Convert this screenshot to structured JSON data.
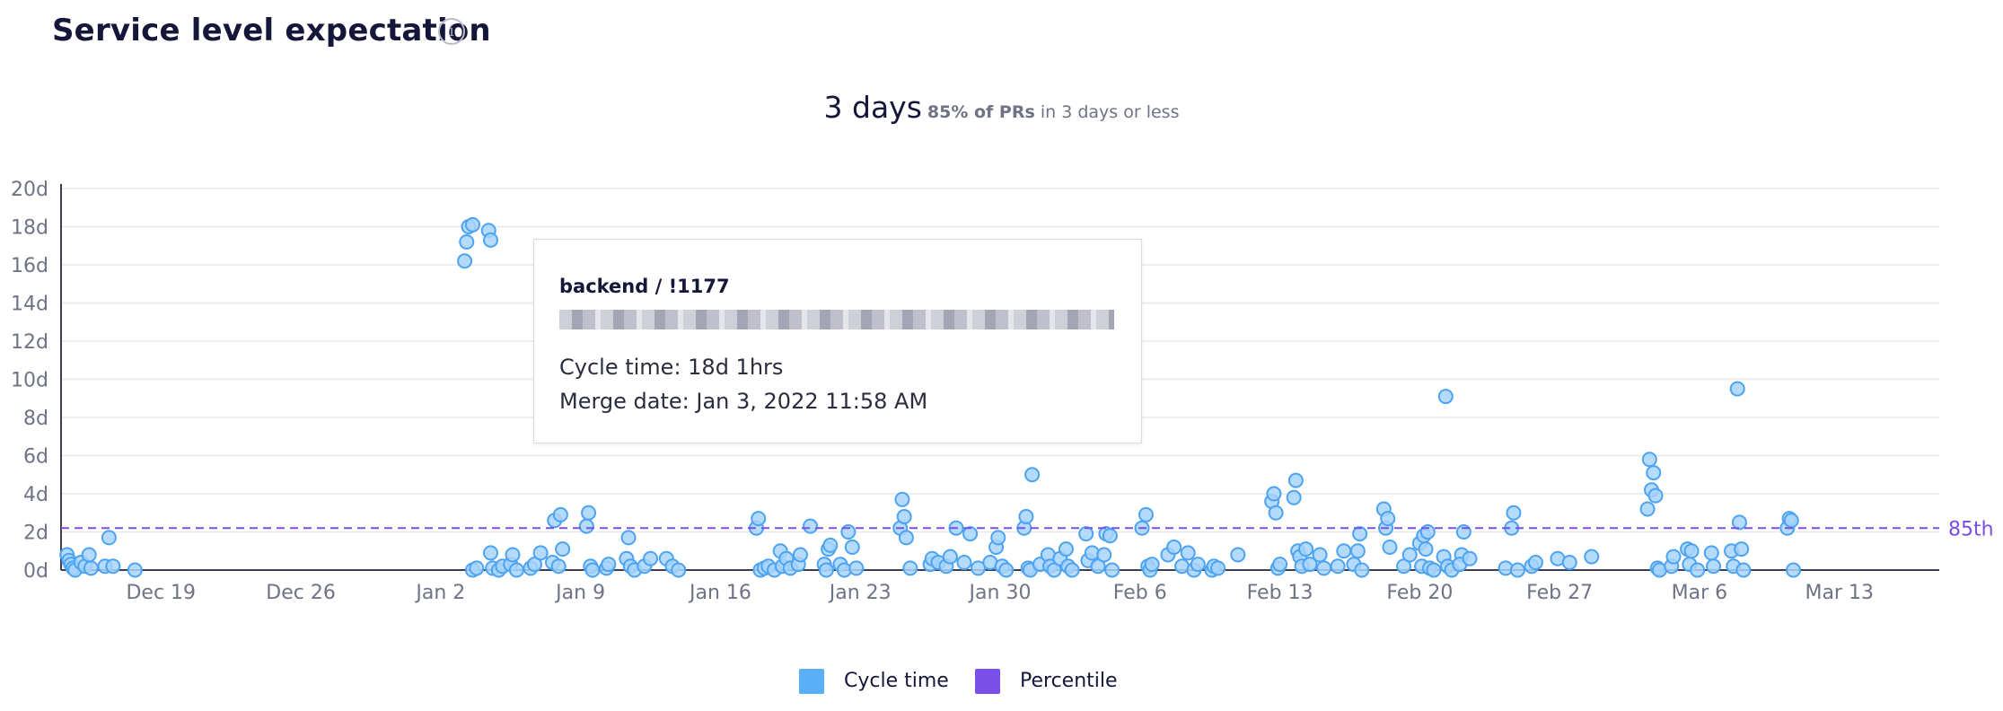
{
  "header": {
    "title": "Service level expectation",
    "info_icon": "info-icon"
  },
  "summary": {
    "value": "3 days",
    "note_strong": "85% of PRs",
    "note_rest": " in 3 days or less"
  },
  "tooltip": {
    "title": "backend / !1177",
    "cycle_time": "Cycle time: 18d 1hrs",
    "merge_date": "Merge date: Jan 3, 2022 11:58 AM"
  },
  "legend": [
    {
      "label": "Cycle time",
      "color": "#5aaef5"
    },
    {
      "label": "Percentile",
      "color": "#7a4ee8"
    }
  ],
  "colors": {
    "point_fill": "#a7d3fb",
    "point_stroke": "#4da3f0",
    "percentile": "#7a4ee8",
    "grid": "#e6e8ee",
    "axis": "#6e7385"
  },
  "chart_data": {
    "type": "scatter",
    "title": "",
    "xlabel": "",
    "ylabel": "",
    "ylim": [
      0,
      20
    ],
    "y_ticks": [
      "0d",
      "2d",
      "4d",
      "6d",
      "8d",
      "10d",
      "12d",
      "14d",
      "16d",
      "18d",
      "20d"
    ],
    "x_ticks": [
      "Dec 19",
      "Dec 26",
      "Jan 2",
      "Jan 9",
      "Jan 16",
      "Jan 23",
      "Jan 30",
      "Feb 6",
      "Feb 13",
      "Feb 20",
      "Feb 27",
      "Mar 6",
      "Mar 13"
    ],
    "x_tick_days": [
      0,
      7,
      14,
      21,
      28,
      35,
      42,
      49,
      56,
      63,
      70,
      77,
      84
    ],
    "xlim": [
      -5,
      89
    ],
    "percentile": {
      "label": "85th",
      "value": 2.2
    },
    "series": [
      {
        "name": "Cycle time",
        "points": [
          [
            -4.7,
            0.8
          ],
          [
            -4.6,
            0.5
          ],
          [
            -4.5,
            0.3
          ],
          [
            -4.4,
            0.1
          ],
          [
            -4.3,
            0.0
          ],
          [
            -4.0,
            0.4
          ],
          [
            -3.8,
            0.2
          ],
          [
            -3.6,
            0.8
          ],
          [
            -3.5,
            0.1
          ],
          [
            -2.8,
            0.2
          ],
          [
            -2.6,
            1.7
          ],
          [
            -2.4,
            0.2
          ],
          [
            -1.3,
            0.0
          ],
          [
            15.2,
            16.2
          ],
          [
            15.3,
            17.2
          ],
          [
            15.4,
            18.0
          ],
          [
            15.6,
            18.1
          ],
          [
            16.4,
            17.8
          ],
          [
            16.5,
            17.3
          ],
          [
            15.6,
            0.0
          ],
          [
            15.8,
            0.1
          ],
          [
            16.5,
            0.9
          ],
          [
            16.6,
            0.1
          ],
          [
            16.9,
            0.0
          ],
          [
            17.1,
            0.2
          ],
          [
            17.5,
            0.3
          ],
          [
            17.6,
            0.8
          ],
          [
            17.8,
            0.0
          ],
          [
            18.5,
            0.1
          ],
          [
            18.7,
            0.3
          ],
          [
            19.0,
            0.9
          ],
          [
            19.6,
            0.4
          ],
          [
            19.7,
            2.6
          ],
          [
            19.9,
            0.2
          ],
          [
            20.0,
            2.9
          ],
          [
            20.1,
            1.1
          ],
          [
            21.3,
            2.3
          ],
          [
            21.4,
            3.0
          ],
          [
            21.5,
            0.2
          ],
          [
            21.6,
            0.0
          ],
          [
            22.3,
            0.1
          ],
          [
            22.4,
            0.3
          ],
          [
            23.3,
            0.6
          ],
          [
            23.4,
            1.7
          ],
          [
            23.5,
            0.2
          ],
          [
            23.7,
            0.0
          ],
          [
            24.2,
            0.2
          ],
          [
            24.5,
            0.6
          ],
          [
            25.3,
            0.6
          ],
          [
            25.6,
            0.2
          ],
          [
            25.9,
            0.0
          ],
          [
            29.8,
            2.2
          ],
          [
            29.9,
            2.7
          ],
          [
            30.0,
            0.0
          ],
          [
            30.2,
            0.1
          ],
          [
            30.4,
            0.2
          ],
          [
            30.7,
            0.0
          ],
          [
            31.0,
            1.0
          ],
          [
            31.1,
            0.2
          ],
          [
            31.3,
            0.6
          ],
          [
            31.5,
            0.1
          ],
          [
            31.9,
            0.3
          ],
          [
            32.0,
            0.8
          ],
          [
            32.5,
            2.3
          ],
          [
            33.2,
            0.3
          ],
          [
            33.3,
            0.0
          ],
          [
            33.4,
            1.1
          ],
          [
            33.5,
            1.3
          ],
          [
            34.0,
            0.3
          ],
          [
            34.2,
            0.0
          ],
          [
            34.4,
            2.0
          ],
          [
            34.6,
            1.2
          ],
          [
            34.8,
            0.1
          ],
          [
            37.0,
            2.2
          ],
          [
            37.1,
            3.7
          ],
          [
            37.2,
            2.8
          ],
          [
            37.3,
            1.7
          ],
          [
            37.5,
            0.1
          ],
          [
            38.5,
            0.3
          ],
          [
            38.6,
            0.6
          ],
          [
            38.9,
            0.4
          ],
          [
            39.3,
            0.2
          ],
          [
            39.5,
            0.7
          ],
          [
            39.8,
            2.2
          ],
          [
            40.2,
            0.4
          ],
          [
            40.5,
            1.9
          ],
          [
            40.9,
            0.1
          ],
          [
            41.5,
            0.4
          ],
          [
            41.8,
            1.2
          ],
          [
            41.9,
            1.7
          ],
          [
            42.1,
            0.2
          ],
          [
            42.3,
            0.0
          ],
          [
            43.2,
            2.2
          ],
          [
            43.3,
            2.8
          ],
          [
            43.4,
            0.1
          ],
          [
            43.5,
            0.0
          ],
          [
            43.6,
            5.0
          ],
          [
            44.0,
            0.3
          ],
          [
            44.4,
            0.8
          ],
          [
            44.5,
            0.2
          ],
          [
            44.7,
            0.0
          ],
          [
            45.0,
            0.6
          ],
          [
            45.3,
            1.1
          ],
          [
            45.4,
            0.2
          ],
          [
            45.6,
            0.0
          ],
          [
            46.3,
            1.9
          ],
          [
            46.4,
            0.5
          ],
          [
            46.6,
            0.9
          ],
          [
            46.9,
            0.2
          ],
          [
            47.2,
            0.8
          ],
          [
            47.3,
            1.9
          ],
          [
            47.5,
            1.8
          ],
          [
            47.6,
            0.0
          ],
          [
            49.1,
            2.2
          ],
          [
            49.3,
            2.9
          ],
          [
            49.4,
            0.2
          ],
          [
            49.5,
            0.0
          ],
          [
            49.6,
            0.3
          ],
          [
            50.4,
            0.8
          ],
          [
            50.7,
            1.2
          ],
          [
            51.1,
            0.2
          ],
          [
            51.4,
            0.9
          ],
          [
            51.7,
            0.0
          ],
          [
            51.9,
            0.3
          ],
          [
            52.6,
            0.0
          ],
          [
            52.7,
            0.2
          ],
          [
            52.9,
            0.1
          ],
          [
            53.9,
            0.8
          ],
          [
            55.6,
            3.6
          ],
          [
            55.7,
            4.0
          ],
          [
            55.8,
            3.0
          ],
          [
            55.9,
            0.1
          ],
          [
            56.0,
            0.3
          ],
          [
            56.7,
            3.8
          ],
          [
            56.8,
            4.7
          ],
          [
            56.9,
            1.0
          ],
          [
            57.0,
            0.7
          ],
          [
            57.1,
            0.2
          ],
          [
            57.3,
            1.1
          ],
          [
            57.5,
            0.3
          ],
          [
            58.0,
            0.8
          ],
          [
            58.2,
            0.1
          ],
          [
            58.9,
            0.2
          ],
          [
            59.2,
            1.0
          ],
          [
            59.7,
            0.3
          ],
          [
            59.9,
            1.0
          ],
          [
            60.0,
            1.9
          ],
          [
            60.1,
            0.0
          ],
          [
            61.2,
            3.2
          ],
          [
            61.3,
            2.2
          ],
          [
            61.4,
            2.7
          ],
          [
            61.5,
            1.2
          ],
          [
            62.2,
            0.2
          ],
          [
            62.5,
            0.8
          ],
          [
            63.0,
            1.4
          ],
          [
            63.1,
            0.2
          ],
          [
            63.2,
            1.8
          ],
          [
            63.3,
            1.1
          ],
          [
            63.4,
            2.0
          ],
          [
            63.5,
            0.1
          ],
          [
            63.7,
            0.0
          ],
          [
            64.2,
            0.7
          ],
          [
            64.4,
            0.2
          ],
          [
            64.6,
            0.0
          ],
          [
            64.3,
            9.1
          ],
          [
            65.2,
            2.0
          ],
          [
            65.1,
            0.8
          ],
          [
            65.0,
            0.3
          ],
          [
            65.5,
            0.6
          ],
          [
            67.3,
            0.1
          ],
          [
            67.6,
            2.2
          ],
          [
            67.7,
            3.0
          ],
          [
            67.9,
            0.0
          ],
          [
            68.6,
            0.2
          ],
          [
            68.8,
            0.4
          ],
          [
            69.9,
            0.6
          ],
          [
            70.5,
            0.4
          ],
          [
            71.6,
            0.7
          ],
          [
            74.4,
            3.2
          ],
          [
            74.5,
            5.8
          ],
          [
            74.6,
            4.2
          ],
          [
            74.7,
            5.1
          ],
          [
            74.8,
            3.9
          ],
          [
            74.9,
            0.1
          ],
          [
            75.0,
            0.0
          ],
          [
            75.6,
            0.2
          ],
          [
            75.7,
            0.7
          ],
          [
            76.4,
            1.1
          ],
          [
            76.5,
            0.3
          ],
          [
            76.6,
            1.0
          ],
          [
            76.9,
            0.0
          ],
          [
            77.6,
            0.9
          ],
          [
            77.7,
            0.2
          ],
          [
            78.6,
            1.0
          ],
          [
            78.7,
            0.2
          ],
          [
            78.9,
            9.5
          ],
          [
            79.0,
            2.5
          ],
          [
            79.1,
            1.1
          ],
          [
            79.2,
            0.0
          ],
          [
            81.4,
            2.2
          ],
          [
            81.5,
            2.7
          ],
          [
            81.6,
            2.6
          ],
          [
            81.7,
            0.0
          ]
        ]
      }
    ]
  }
}
